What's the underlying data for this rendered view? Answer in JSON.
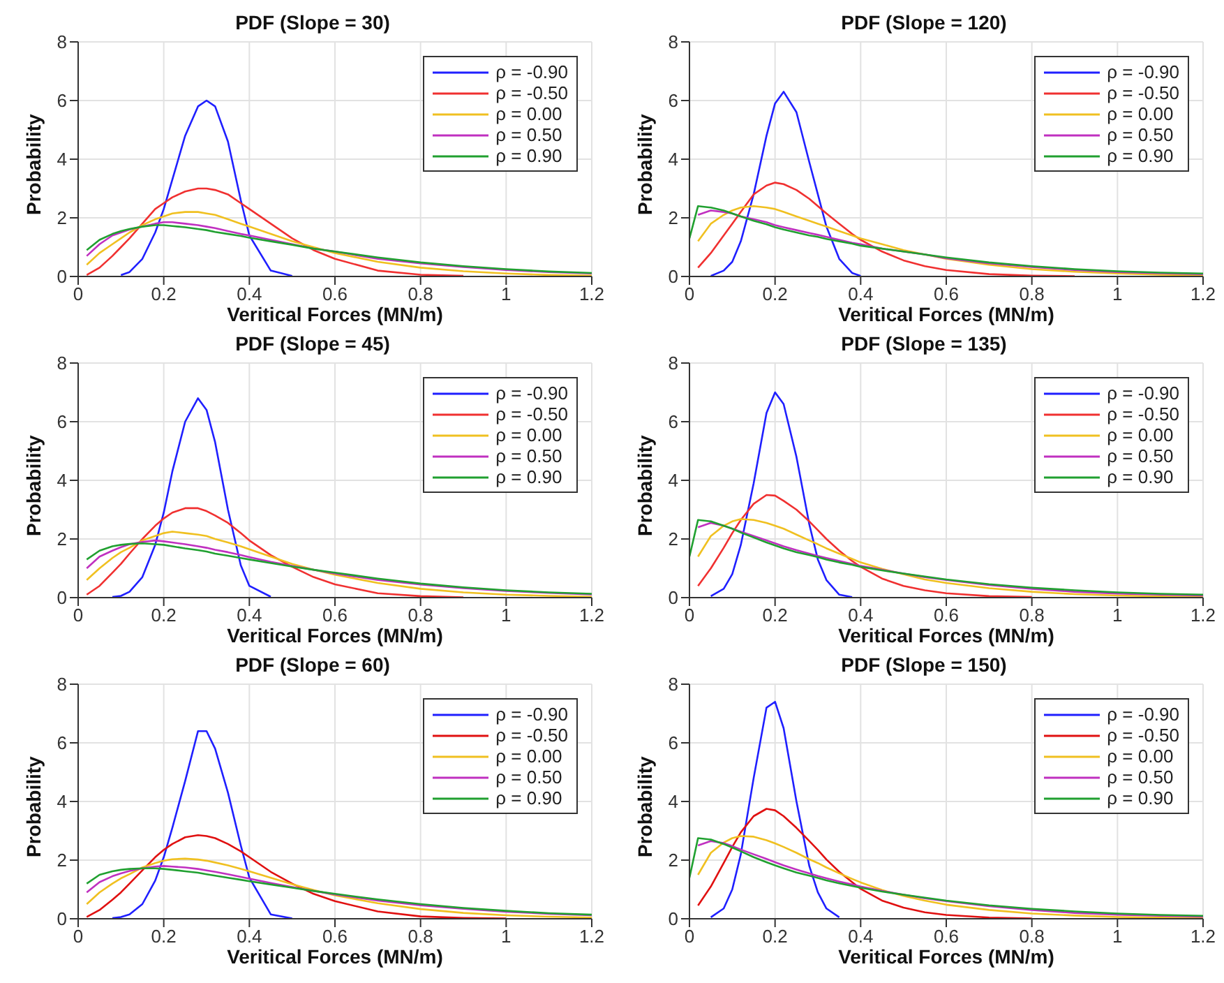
{
  "chart_data": [
    {
      "type": "line",
      "title": "PDF (Slope = 30)",
      "xlabel": "Veritical Forces (MN/m)",
      "ylabel": "Probability",
      "xlim": [
        0,
        1.2
      ],
      "ylim": [
        0,
        8
      ],
      "xticks": [
        0,
        0.2,
        0.4,
        0.6,
        0.8,
        1,
        1.2
      ],
      "yticks": [
        0,
        2,
        4,
        6,
        8
      ],
      "grid": true,
      "legend": "top right",
      "marker": "none",
      "line_style": "solid",
      "x": [
        0.02,
        0.05,
        0.08,
        0.1,
        0.12,
        0.15,
        0.18,
        0.2,
        0.22,
        0.25,
        0.28,
        0.3,
        0.32,
        0.35,
        0.38,
        0.4,
        0.45,
        0.5,
        0.55,
        0.6,
        0.7,
        0.8,
        0.9,
        1,
        1.1,
        1.2
      ],
      "series": [
        {
          "name": "ρ = -0.90",
          "color": "#1f1fff",
          "values": [
            null,
            null,
            null,
            0.05,
            0.15,
            0.6,
            1.5,
            2.3,
            3.3,
            4.8,
            5.8,
            6.0,
            5.8,
            4.6,
            2.6,
            1.4,
            0.2,
            0.02,
            null,
            null,
            null,
            null,
            null,
            null,
            null,
            null
          ]
        },
        {
          "name": "ρ = -0.50",
          "color": "#f03030",
          "values": [
            0.05,
            0.3,
            0.7,
            1.0,
            1.3,
            1.8,
            2.3,
            2.5,
            2.7,
            2.9,
            3.0,
            3.0,
            2.95,
            2.8,
            2.5,
            2.3,
            1.8,
            1.3,
            0.9,
            0.6,
            0.2,
            0.06,
            0.02,
            null,
            null,
            null
          ]
        },
        {
          "name": "ρ = 0.00",
          "color": "#f0c020",
          "values": [
            0.4,
            0.8,
            1.1,
            1.3,
            1.5,
            1.75,
            1.95,
            2.05,
            2.15,
            2.2,
            2.2,
            2.15,
            2.1,
            1.95,
            1.8,
            1.7,
            1.45,
            1.2,
            1.0,
            0.8,
            0.5,
            0.3,
            0.18,
            0.1,
            0.05,
            0.03
          ]
        },
        {
          "name": "ρ = 0.50",
          "color": "#c030c0",
          "values": [
            0.7,
            1.1,
            1.4,
            1.5,
            1.6,
            1.7,
            1.8,
            1.85,
            1.85,
            1.8,
            1.75,
            1.7,
            1.65,
            1.55,
            1.45,
            1.4,
            1.25,
            1.1,
            0.95,
            0.85,
            0.6,
            0.45,
            0.32,
            0.22,
            0.15,
            0.1
          ]
        },
        {
          "name": "ρ = 0.90",
          "color": "#20a030",
          "values": [
            0.9,
            1.25,
            1.45,
            1.55,
            1.62,
            1.7,
            1.75,
            1.75,
            1.72,
            1.68,
            1.62,
            1.58,
            1.52,
            1.45,
            1.38,
            1.32,
            1.2,
            1.08,
            0.95,
            0.85,
            0.65,
            0.48,
            0.35,
            0.25,
            0.17,
            0.12
          ]
        }
      ]
    },
    {
      "type": "line",
      "title": "PDF (Slope = 120)",
      "xlabel": "Veritical Forces (MN/m)",
      "ylabel": "Probability",
      "xlim": [
        0,
        1.2
      ],
      "ylim": [
        0,
        8
      ],
      "xticks": [
        0,
        0.2,
        0.4,
        0.6,
        0.8,
        1,
        1.2
      ],
      "yticks": [
        0,
        2,
        4,
        6,
        8
      ],
      "grid": true,
      "legend": "top right",
      "marker": "none",
      "line_style": "solid",
      "x": [
        0,
        0.02,
        0.05,
        0.08,
        0.1,
        0.12,
        0.15,
        0.18,
        0.2,
        0.22,
        0.25,
        0.28,
        0.3,
        0.32,
        0.35,
        0.38,
        0.4,
        0.45,
        0.5,
        0.55,
        0.6,
        0.7,
        0.8,
        0.9,
        1,
        1.1,
        1.2
      ],
      "series": [
        {
          "name": "ρ = -0.90",
          "color": "#1f1fff",
          "values": [
            null,
            null,
            0.02,
            0.2,
            0.5,
            1.2,
            2.8,
            4.8,
            5.9,
            6.3,
            5.6,
            3.9,
            2.8,
            1.7,
            0.6,
            0.12,
            0.02,
            null,
            null,
            null,
            null,
            null,
            null,
            null,
            null,
            null,
            null
          ]
        },
        {
          "name": "ρ = -0.50",
          "color": "#f03030",
          "values": [
            null,
            0.3,
            0.8,
            1.4,
            1.8,
            2.2,
            2.8,
            3.1,
            3.2,
            3.15,
            2.95,
            2.65,
            2.4,
            2.15,
            1.8,
            1.45,
            1.25,
            0.85,
            0.55,
            0.35,
            0.22,
            0.08,
            0.03,
            0.01,
            null,
            null,
            null
          ]
        },
        {
          "name": "ρ = 0.00",
          "color": "#f0c020",
          "values": [
            null,
            1.2,
            1.8,
            2.1,
            2.25,
            2.35,
            2.4,
            2.35,
            2.3,
            2.2,
            2.05,
            1.9,
            1.8,
            1.7,
            1.55,
            1.4,
            1.3,
            1.1,
            0.9,
            0.75,
            0.6,
            0.4,
            0.25,
            0.16,
            0.1,
            0.06,
            0.04
          ]
        },
        {
          "name": "ρ = 0.50",
          "color": "#c030c0",
          "values": [
            null,
            2.1,
            2.25,
            2.2,
            2.15,
            2.05,
            1.95,
            1.85,
            1.75,
            1.68,
            1.58,
            1.48,
            1.42,
            1.35,
            1.25,
            1.15,
            1.1,
            0.95,
            0.85,
            0.75,
            0.62,
            0.45,
            0.32,
            0.22,
            0.15,
            0.11,
            0.08
          ]
        },
        {
          "name": "ρ = 0.90",
          "color": "#20a030",
          "values": [
            1.3,
            2.4,
            2.35,
            2.25,
            2.15,
            2.05,
            1.9,
            1.78,
            1.68,
            1.6,
            1.5,
            1.4,
            1.35,
            1.28,
            1.2,
            1.12,
            1.05,
            0.95,
            0.85,
            0.75,
            0.65,
            0.48,
            0.35,
            0.25,
            0.18,
            0.13,
            0.1
          ]
        }
      ]
    },
    {
      "type": "line",
      "title": "PDF (Slope = 45)",
      "xlabel": "Veritical Forces (MN/m)",
      "ylabel": "Probability",
      "xlim": [
        0,
        1.2
      ],
      "ylim": [
        0,
        8
      ],
      "xticks": [
        0,
        0.2,
        0.4,
        0.6,
        0.8,
        1,
        1.2
      ],
      "yticks": [
        0,
        2,
        4,
        6,
        8
      ],
      "grid": true,
      "legend": "top right",
      "marker": "none",
      "line_style": "solid",
      "x": [
        0.02,
        0.05,
        0.08,
        0.1,
        0.12,
        0.15,
        0.18,
        0.2,
        0.22,
        0.25,
        0.28,
        0.3,
        0.32,
        0.35,
        0.38,
        0.4,
        0.45,
        0.5,
        0.55,
        0.6,
        0.7,
        0.8,
        0.9,
        1,
        1.1,
        1.2
      ],
      "series": [
        {
          "name": "ρ = -0.90",
          "color": "#1f1fff",
          "values": [
            null,
            null,
            0.02,
            0.06,
            0.2,
            0.7,
            1.8,
            2.9,
            4.3,
            6.0,
            6.8,
            6.4,
            5.3,
            3.0,
            1.1,
            0.4,
            0.03,
            null,
            null,
            null,
            null,
            null,
            null,
            null,
            null,
            null
          ]
        },
        {
          "name": "ρ = -0.50",
          "color": "#f03030",
          "values": [
            0.1,
            0.4,
            0.85,
            1.15,
            1.5,
            2.0,
            2.45,
            2.7,
            2.9,
            3.05,
            3.05,
            2.95,
            2.8,
            2.55,
            2.2,
            1.95,
            1.45,
            1.05,
            0.7,
            0.45,
            0.15,
            0.05,
            0.01,
            null,
            null,
            null
          ]
        },
        {
          "name": "ρ = 0.00",
          "color": "#f0c020",
          "values": [
            0.6,
            1.0,
            1.35,
            1.55,
            1.7,
            1.95,
            2.1,
            2.2,
            2.25,
            2.2,
            2.15,
            2.1,
            2.0,
            1.88,
            1.75,
            1.65,
            1.4,
            1.15,
            0.95,
            0.78,
            0.5,
            0.3,
            0.18,
            0.1,
            0.06,
            0.03
          ]
        },
        {
          "name": "ρ = 0.50",
          "color": "#c030c0",
          "values": [
            1.0,
            1.4,
            1.6,
            1.72,
            1.82,
            1.9,
            1.95,
            1.92,
            1.88,
            1.82,
            1.75,
            1.7,
            1.63,
            1.55,
            1.45,
            1.38,
            1.22,
            1.08,
            0.95,
            0.82,
            0.6,
            0.45,
            0.32,
            0.23,
            0.16,
            0.11
          ]
        },
        {
          "name": "ρ = 0.90",
          "color": "#20a030",
          "values": [
            1.3,
            1.6,
            1.75,
            1.8,
            1.83,
            1.85,
            1.82,
            1.8,
            1.75,
            1.68,
            1.62,
            1.57,
            1.5,
            1.43,
            1.35,
            1.3,
            1.18,
            1.06,
            0.95,
            0.85,
            0.65,
            0.48,
            0.35,
            0.25,
            0.18,
            0.13
          ]
        }
      ]
    },
    {
      "type": "line",
      "title": "PDF (Slope = 135)",
      "xlabel": "Veritical Forces (MN/m)",
      "ylabel": "Probability",
      "xlim": [
        0,
        1.2
      ],
      "ylim": [
        0,
        8
      ],
      "xticks": [
        0,
        0.2,
        0.4,
        0.6,
        0.8,
        1,
        1.2
      ],
      "yticks": [
        0,
        2,
        4,
        6,
        8
      ],
      "grid": true,
      "legend": "top right",
      "marker": "none",
      "line_style": "solid",
      "x": [
        0,
        0.02,
        0.05,
        0.08,
        0.1,
        0.12,
        0.15,
        0.18,
        0.2,
        0.22,
        0.25,
        0.28,
        0.3,
        0.32,
        0.35,
        0.38,
        0.4,
        0.45,
        0.5,
        0.55,
        0.6,
        0.7,
        0.8,
        0.9,
        1,
        1.1,
        1.2
      ],
      "series": [
        {
          "name": "ρ = -0.90",
          "color": "#1f1fff",
          "values": [
            null,
            null,
            0.05,
            0.3,
            0.8,
            1.8,
            3.9,
            6.3,
            7.0,
            6.6,
            4.8,
            2.5,
            1.3,
            0.6,
            0.1,
            0.02,
            null,
            null,
            null,
            null,
            null,
            null,
            null,
            null,
            null,
            null,
            null
          ]
        },
        {
          "name": "ρ = -0.50",
          "color": "#f03030",
          "values": [
            null,
            0.4,
            1.0,
            1.7,
            2.2,
            2.65,
            3.2,
            3.5,
            3.48,
            3.3,
            3.0,
            2.6,
            2.3,
            2.0,
            1.6,
            1.25,
            1.05,
            0.65,
            0.4,
            0.25,
            0.15,
            0.05,
            0.02,
            null,
            null,
            null,
            null
          ]
        },
        {
          "name": "ρ = 0.00",
          "color": "#f0c020",
          "values": [
            null,
            1.4,
            2.1,
            2.45,
            2.6,
            2.68,
            2.65,
            2.55,
            2.45,
            2.35,
            2.15,
            1.95,
            1.82,
            1.68,
            1.5,
            1.32,
            1.2,
            0.98,
            0.8,
            0.62,
            0.5,
            0.32,
            0.2,
            0.12,
            0.07,
            0.04,
            0.02
          ]
        },
        {
          "name": "ρ = 0.50",
          "color": "#c030c0",
          "values": [
            null,
            2.4,
            2.55,
            2.45,
            2.35,
            2.25,
            2.1,
            1.95,
            1.85,
            1.75,
            1.62,
            1.5,
            1.42,
            1.35,
            1.25,
            1.15,
            1.08,
            0.95,
            0.82,
            0.7,
            0.6,
            0.43,
            0.3,
            0.2,
            0.14,
            0.1,
            0.07
          ]
        },
        {
          "name": "ρ = 0.90",
          "color": "#20a030",
          "values": [
            1.4,
            2.65,
            2.6,
            2.45,
            2.35,
            2.22,
            2.05,
            1.88,
            1.78,
            1.68,
            1.55,
            1.45,
            1.38,
            1.3,
            1.2,
            1.12,
            1.05,
            0.93,
            0.82,
            0.72,
            0.62,
            0.46,
            0.34,
            0.25,
            0.18,
            0.13,
            0.1
          ]
        }
      ]
    },
    {
      "type": "line",
      "title": "PDF (Slope = 60)",
      "xlabel": "Veritical Forces (MN/m)",
      "ylabel": "Probability",
      "xlim": [
        0,
        1.2
      ],
      "ylim": [
        0,
        8
      ],
      "xticks": [
        0,
        0.2,
        0.4,
        0.6,
        0.8,
        1,
        1.2
      ],
      "yticks": [
        0,
        2,
        4,
        6,
        8
      ],
      "grid": true,
      "legend": "top right",
      "marker": "none",
      "line_style": "solid",
      "x": [
        0.02,
        0.05,
        0.08,
        0.1,
        0.12,
        0.15,
        0.18,
        0.2,
        0.22,
        0.25,
        0.28,
        0.3,
        0.32,
        0.35,
        0.38,
        0.4,
        0.45,
        0.5,
        0.55,
        0.6,
        0.7,
        0.8,
        0.9,
        1,
        1.1,
        1.2
      ],
      "series": [
        {
          "name": "ρ = -0.90",
          "color": "#1f1fff",
          "values": [
            null,
            null,
            0.02,
            0.06,
            0.15,
            0.5,
            1.3,
            2.1,
            3.1,
            4.7,
            6.4,
            6.4,
            5.8,
            4.3,
            2.5,
            1.4,
            0.15,
            0.01,
            null,
            null,
            null,
            null,
            null,
            null,
            null,
            null
          ]
        },
        {
          "name": "ρ = -0.50",
          "color": "#e01010",
          "values": [
            0.06,
            0.3,
            0.65,
            0.9,
            1.2,
            1.65,
            2.1,
            2.35,
            2.55,
            2.78,
            2.85,
            2.82,
            2.75,
            2.55,
            2.3,
            2.1,
            1.6,
            1.2,
            0.85,
            0.6,
            0.25,
            0.08,
            0.03,
            0.01,
            null,
            null
          ]
        },
        {
          "name": "ρ = 0.00",
          "color": "#f0c020",
          "values": [
            0.5,
            0.9,
            1.2,
            1.38,
            1.52,
            1.75,
            1.9,
            1.98,
            2.03,
            2.05,
            2.02,
            1.98,
            1.92,
            1.82,
            1.7,
            1.62,
            1.4,
            1.18,
            0.98,
            0.8,
            0.53,
            0.33,
            0.2,
            0.12,
            0.07,
            0.04
          ]
        },
        {
          "name": "ρ = 0.50",
          "color": "#c030c0",
          "values": [
            0.9,
            1.25,
            1.45,
            1.55,
            1.63,
            1.72,
            1.78,
            1.8,
            1.78,
            1.75,
            1.7,
            1.65,
            1.6,
            1.52,
            1.43,
            1.37,
            1.22,
            1.08,
            0.95,
            0.83,
            0.62,
            0.46,
            0.34,
            0.24,
            0.17,
            0.12
          ]
        },
        {
          "name": "ρ = 0.90",
          "color": "#20a030",
          "values": [
            1.2,
            1.5,
            1.62,
            1.67,
            1.7,
            1.72,
            1.72,
            1.7,
            1.67,
            1.62,
            1.57,
            1.52,
            1.47,
            1.4,
            1.33,
            1.28,
            1.17,
            1.06,
            0.95,
            0.85,
            0.66,
            0.5,
            0.37,
            0.27,
            0.19,
            0.14
          ]
        }
      ]
    },
    {
      "type": "line",
      "title": "PDF (Slope = 150)",
      "xlabel": "Veritical Forces (MN/m)",
      "ylabel": "Probability",
      "xlim": [
        0,
        1.2
      ],
      "ylim": [
        0,
        8
      ],
      "xticks": [
        0,
        0.2,
        0.4,
        0.6,
        0.8,
        1,
        1.2
      ],
      "yticks": [
        0,
        2,
        4,
        6,
        8
      ],
      "grid": true,
      "legend": "top right",
      "marker": "none",
      "line_style": "solid",
      "x": [
        0,
        0.02,
        0.05,
        0.08,
        0.1,
        0.12,
        0.15,
        0.18,
        0.2,
        0.22,
        0.25,
        0.28,
        0.3,
        0.32,
        0.35,
        0.38,
        0.4,
        0.45,
        0.5,
        0.55,
        0.6,
        0.7,
        0.8,
        0.9,
        1,
        1.1,
        1.2
      ],
      "series": [
        {
          "name": "ρ = -0.90",
          "color": "#1f1fff",
          "values": [
            null,
            null,
            0.05,
            0.35,
            1.0,
            2.2,
            4.8,
            7.2,
            7.4,
            6.5,
            4.0,
            1.8,
            0.9,
            0.35,
            0.05,
            null,
            null,
            null,
            null,
            null,
            null,
            null,
            null,
            null,
            null,
            null,
            null
          ]
        },
        {
          "name": "ρ = -0.50",
          "color": "#e01010",
          "values": [
            null,
            0.45,
            1.1,
            1.9,
            2.45,
            2.95,
            3.5,
            3.75,
            3.7,
            3.5,
            3.1,
            2.65,
            2.35,
            2.02,
            1.6,
            1.25,
            1.02,
            0.62,
            0.38,
            0.22,
            0.13,
            0.04,
            0.01,
            null,
            null,
            null,
            null
          ]
        },
        {
          "name": "ρ = 0.00",
          "color": "#f0c020",
          "values": [
            null,
            1.5,
            2.25,
            2.6,
            2.75,
            2.82,
            2.8,
            2.68,
            2.57,
            2.45,
            2.25,
            2.03,
            1.9,
            1.75,
            1.55,
            1.36,
            1.24,
            0.98,
            0.78,
            0.62,
            0.48,
            0.3,
            0.18,
            0.11,
            0.06,
            0.04,
            0.02
          ]
        },
        {
          "name": "ρ = 0.50",
          "color": "#c030c0",
          "values": [
            null,
            2.5,
            2.65,
            2.58,
            2.48,
            2.36,
            2.2,
            2.04,
            1.93,
            1.82,
            1.68,
            1.55,
            1.46,
            1.38,
            1.27,
            1.17,
            1.1,
            0.95,
            0.82,
            0.7,
            0.6,
            0.43,
            0.3,
            0.2,
            0.14,
            0.1,
            0.07
          ]
        },
        {
          "name": "ρ = 0.90",
          "color": "#20a030",
          "values": [
            1.4,
            2.75,
            2.7,
            2.55,
            2.43,
            2.3,
            2.1,
            1.93,
            1.82,
            1.72,
            1.58,
            1.47,
            1.39,
            1.31,
            1.21,
            1.12,
            1.06,
            0.93,
            0.82,
            0.72,
            0.62,
            0.46,
            0.34,
            0.25,
            0.18,
            0.13,
            0.1
          ]
        }
      ]
    }
  ]
}
